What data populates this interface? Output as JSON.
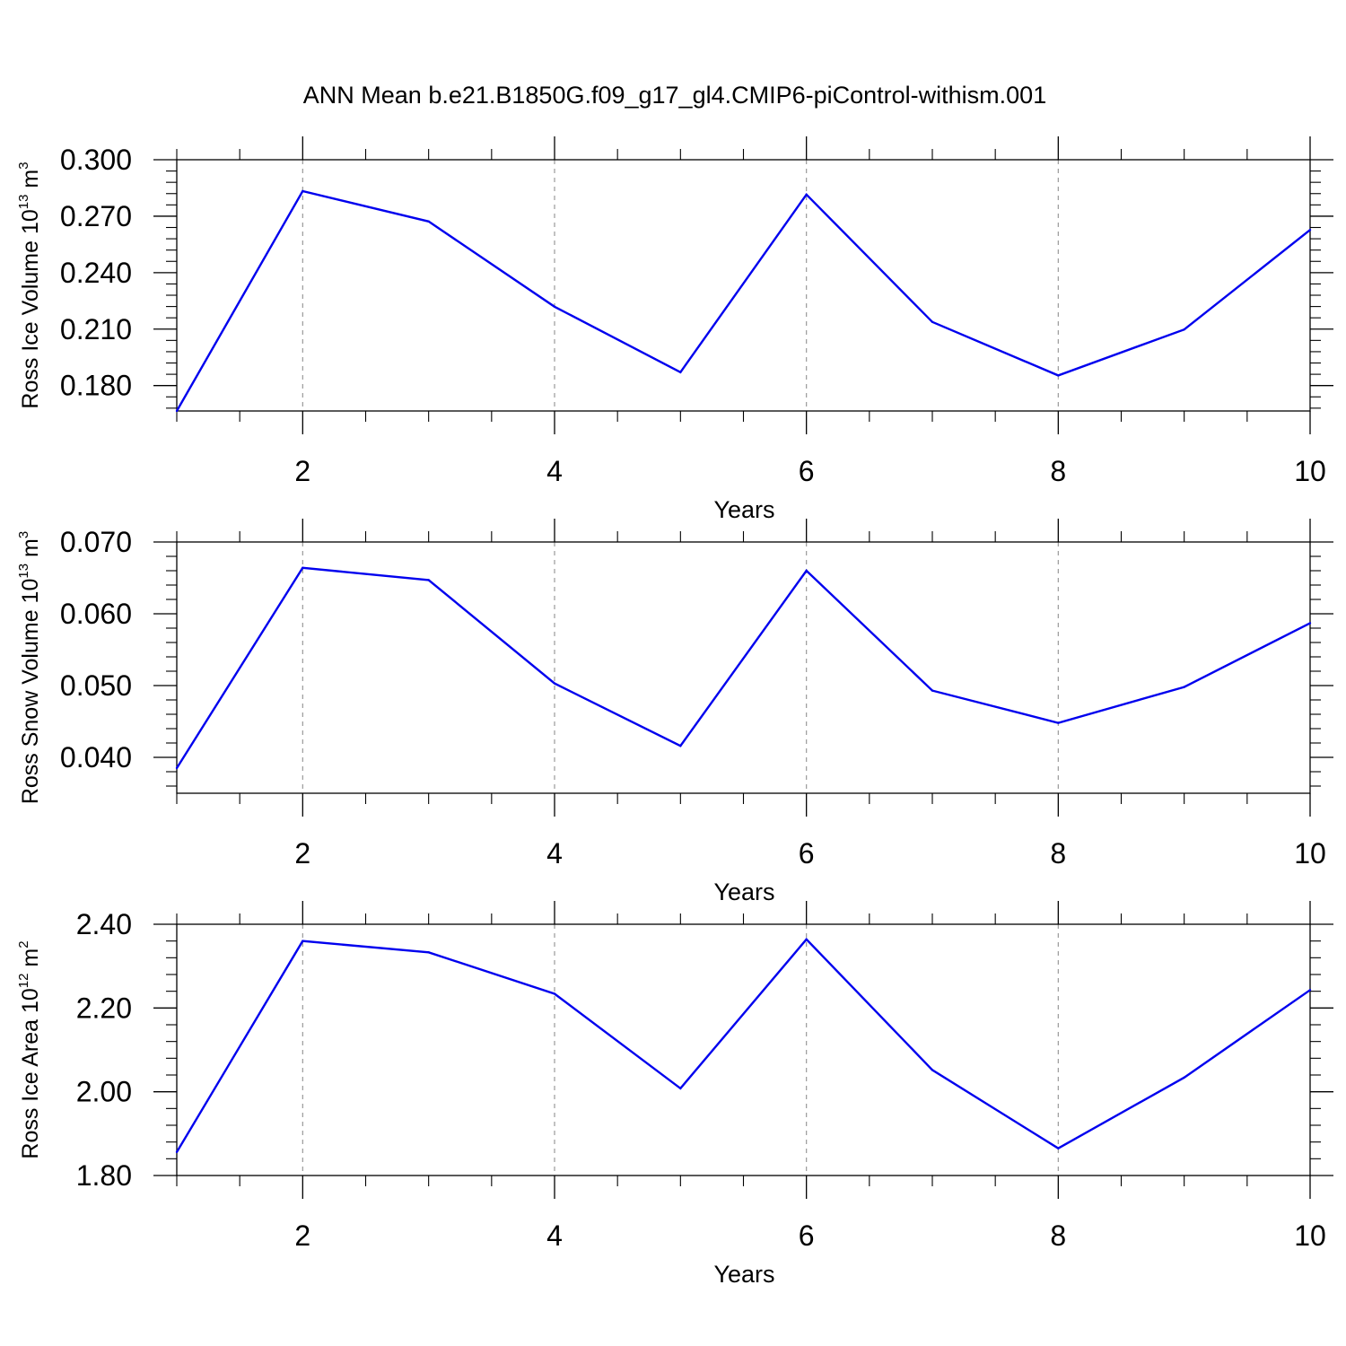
{
  "title": "ANN Mean b.e21.B1850G.f09_g17_gl4.CMIP6-piControl-withism.001",
  "colors": {
    "series": "#0000ee",
    "axis": "#000000",
    "grid": "#999999"
  },
  "chart_data": [
    {
      "type": "line",
      "ylabel": {
        "main": "Ross Ice Volume 10",
        "exp": "13",
        "unit": " m",
        "unit_exp": "3"
      },
      "xlabel": "Years",
      "xlim": [
        1,
        10
      ],
      "ylim": [
        0.1665,
        0.3
      ],
      "x_ticks": [
        2,
        4,
        6,
        8,
        10
      ],
      "x_tick_labels": [
        "2",
        "4",
        "6",
        "8",
        "10"
      ],
      "y_ticks": [
        0.18,
        0.21,
        0.24,
        0.27,
        0.3
      ],
      "y_tick_labels": [
        "0.180",
        "0.210",
        "0.240",
        "0.270",
        "0.300"
      ],
      "grid": "vertical-dashed",
      "x": [
        1,
        2,
        3,
        4,
        5,
        6,
        7,
        8,
        9,
        10
      ],
      "values": [
        0.1665,
        0.2833,
        0.2672,
        0.2219,
        0.1871,
        0.2815,
        0.2138,
        0.1854,
        0.2098,
        0.2627
      ]
    },
    {
      "type": "line",
      "ylabel": {
        "main": "Ross Snow Volume 10",
        "exp": "13",
        "unit": " m",
        "unit_exp": "3"
      },
      "xlabel": "Years",
      "xlim": [
        1,
        10
      ],
      "ylim": [
        0.035,
        0.07
      ],
      "x_ticks": [
        2,
        4,
        6,
        8,
        10
      ],
      "x_tick_labels": [
        "2",
        "4",
        "6",
        "8",
        "10"
      ],
      "y_ticks": [
        0.04,
        0.05,
        0.06,
        0.07
      ],
      "y_tick_labels": [
        "0.040",
        "0.050",
        "0.060",
        "0.070"
      ],
      "grid": "vertical-dashed",
      "x": [
        1,
        2,
        3,
        4,
        5,
        6,
        7,
        8,
        9,
        10
      ],
      "values": [
        0.0385,
        0.0664,
        0.0647,
        0.0503,
        0.0416,
        0.066,
        0.0493,
        0.0448,
        0.0498,
        0.0587
      ]
    },
    {
      "type": "line",
      "ylabel": {
        "main": "Ross Ice Area 10",
        "exp": "12",
        "unit": " m",
        "unit_exp": "2"
      },
      "xlabel": "Years",
      "xlim": [
        1,
        10
      ],
      "ylim": [
        1.8,
        2.4
      ],
      "x_ticks": [
        2,
        4,
        6,
        8,
        10
      ],
      "x_tick_labels": [
        "2",
        "4",
        "6",
        "8",
        "10"
      ],
      "y_ticks": [
        1.8,
        2.0,
        2.2,
        2.4
      ],
      "y_tick_labels": [
        "1.80",
        "2.00",
        "2.20",
        "2.40"
      ],
      "grid": "vertical-dashed",
      "x": [
        1,
        2,
        3,
        4,
        5,
        6,
        7,
        8,
        9,
        10
      ],
      "values": [
        1.856,
        2.36,
        2.333,
        2.234,
        2.008,
        2.364,
        2.052,
        1.865,
        2.034,
        2.243
      ]
    }
  ]
}
